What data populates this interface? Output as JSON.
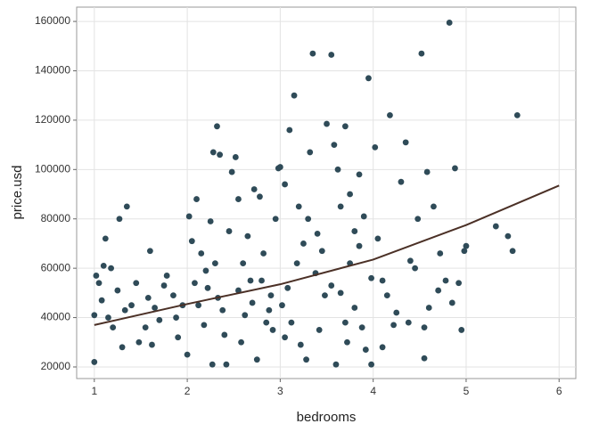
{
  "chart_data": {
    "type": "scatter",
    "x_label": "bedrooms",
    "y_label": "price.usd",
    "xlim": [
      0.81,
      6.18
    ],
    "xticks": [
      1,
      2,
      3,
      4,
      5,
      6
    ],
    "ylim": [
      15300,
      165800
    ],
    "yticks": [
      20000,
      40000,
      60000,
      80000,
      100000,
      120000,
      140000,
      160000
    ],
    "grid": true,
    "color": "#2f4b58",
    "fit_color": "#4b3026",
    "x": [
      1.02,
      1.05,
      1.0,
      1.0,
      1.08,
      1.1,
      1.12,
      1.18,
      1.25,
      1.27,
      1.35,
      1.2,
      1.3,
      1.4,
      1.45,
      1.15,
      1.33,
      1.48,
      1.55,
      1.6,
      1.65,
      1.7,
      1.78,
      1.85,
      1.9,
      1.95,
      1.62,
      1.75,
      1.88,
      1.58,
      2.02,
      2.05,
      2.1,
      2.15,
      2.2,
      2.25,
      2.28,
      2.32,
      2.35,
      2.0,
      2.12,
      2.18,
      2.22,
      2.27,
      2.3,
      2.38,
      2.4,
      2.45,
      2.48,
      2.42,
      2.08,
      2.33,
      2.52,
      2.55,
      2.6,
      2.65,
      2.7,
      2.72,
      2.78,
      2.8,
      2.85,
      2.9,
      2.95,
      2.98,
      2.58,
      2.62,
      2.68,
      2.75,
      2.82,
      2.88,
      2.92,
      2.55,
      3.0,
      3.05,
      3.1,
      3.15,
      3.2,
      3.3,
      3.35,
      3.32,
      3.4,
      3.45,
      3.5,
      3.02,
      3.08,
      3.12,
      3.18,
      3.22,
      3.28,
      3.38,
      3.42,
      3.48,
      3.25,
      3.05,
      3.55,
      3.58,
      3.62,
      3.65,
      3.7,
      3.75,
      3.8,
      3.85,
      3.9,
      3.95,
      3.98,
      3.6,
      3.65,
      3.7,
      3.75,
      3.8,
      3.88,
      3.92,
      3.98,
      3.55,
      3.72,
      3.85,
      4.02,
      4.05,
      4.1,
      4.18,
      4.22,
      4.3,
      4.35,
      4.4,
      4.45,
      4.15,
      4.25,
      4.38,
      4.48,
      4.1,
      4.52,
      4.55,
      4.58,
      4.65,
      4.72,
      4.78,
      4.82,
      4.88,
      4.92,
      4.95,
      4.6,
      4.7,
      4.85,
      4.55,
      4.98,
      5.0,
      5.32,
      5.45,
      5.5,
      5.55
    ],
    "values": [
      57000,
      54000,
      41000,
      22000,
      47000,
      61000,
      72000,
      60000,
      51000,
      80000,
      85000,
      36000,
      28000,
      45000,
      54000,
      40000,
      43000,
      30000,
      36000,
      67000,
      44000,
      39000,
      57000,
      49000,
      32000,
      45000,
      29000,
      53000,
      40000,
      48000,
      81000,
      71000,
      88000,
      66000,
      59000,
      79000,
      107000,
      117500,
      106000,
      25000,
      45000,
      37000,
      52000,
      21000,
      62000,
      43000,
      33000,
      75000,
      99000,
      21000,
      54000,
      48000,
      105000,
      88000,
      62000,
      73000,
      46000,
      92000,
      89000,
      55000,
      38000,
      49000,
      80000,
      100500,
      30000,
      41000,
      55000,
      23000,
      66000,
      43000,
      35000,
      51000,
      101000,
      94000,
      116000,
      130000,
      85000,
      80000,
      147000,
      107000,
      74000,
      67000,
      118500,
      45000,
      52000,
      38000,
      62000,
      29000,
      23000,
      58000,
      35000,
      49000,
      70000,
      32000,
      146500,
      110000,
      100000,
      85000,
      117500,
      90000,
      75000,
      98000,
      81000,
      137000,
      56000,
      21000,
      50000,
      38000,
      62000,
      44000,
      36000,
      27000,
      21000,
      53000,
      30000,
      69000,
      109000,
      72000,
      28000,
      122000,
      37000,
      95000,
      111000,
      63000,
      60000,
      49000,
      42000,
      38000,
      80000,
      55000,
      147000,
      23500,
      99000,
      85000,
      66000,
      55000,
      159500,
      100500,
      54000,
      35000,
      44000,
      51000,
      46000,
      36000,
      67000,
      69000,
      77000,
      73000,
      67000,
      122000
    ],
    "fit_x": [
      1,
      2,
      3,
      4,
      5,
      6
    ],
    "fit_values": [
      37000,
      45500,
      53500,
      63500,
      77500,
      93500
    ]
  }
}
